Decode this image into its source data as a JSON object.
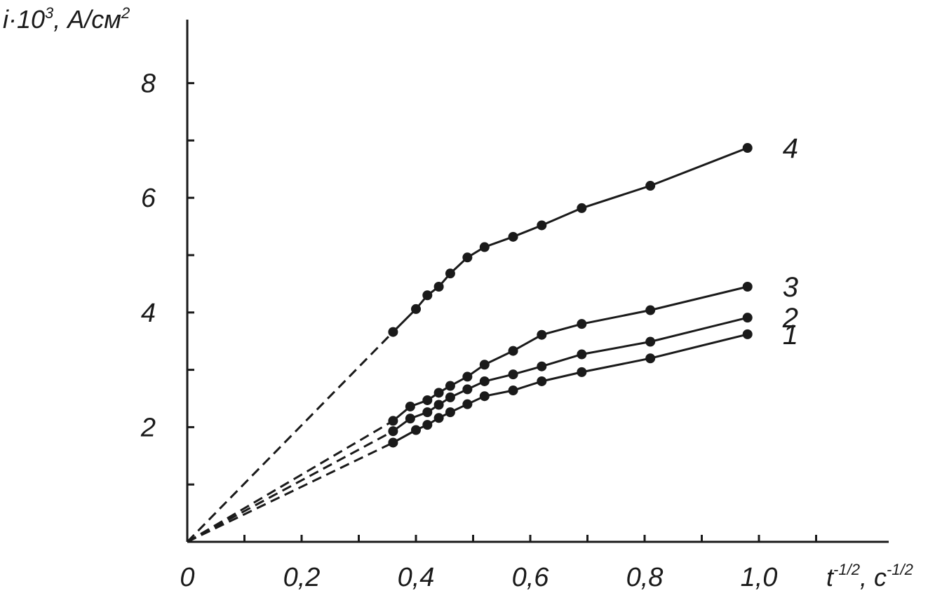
{
  "chart_data": {
    "type": "line",
    "xlabel": "t",
    "xlabel_sup": "-1/2",
    "xlabel_unit": ", с",
    "xlabel_unit_sup": "-1/2",
    "ylabel_prefix": "i·10",
    "ylabel_sup": "3",
    "ylabel_unit": ", А/см",
    "ylabel_unit_sup": "2",
    "xlim": [
      0,
      1.1
    ],
    "ylim": [
      0,
      9.2
    ],
    "x_ticks": [
      {
        "value": 0,
        "label": "0"
      },
      {
        "value": 0.2,
        "label": "0,2"
      },
      {
        "value": 0.4,
        "label": "0,4"
      },
      {
        "value": 0.6,
        "label": "0,6"
      },
      {
        "value": 0.8,
        "label": "0,8"
      },
      {
        "value": 1.0,
        "label": "1,0"
      }
    ],
    "x_minor_ticks": [
      0.1,
      0.3,
      0.5,
      0.7,
      0.9,
      1.1
    ],
    "y_ticks": [
      {
        "value": 2,
        "label": "2"
      },
      {
        "value": 4,
        "label": "4"
      },
      {
        "value": 6,
        "label": "6"
      },
      {
        "value": 8,
        "label": "8"
      }
    ],
    "y_minor_ticks": [
      1,
      3,
      5,
      7
    ],
    "grid": false,
    "series": [
      {
        "name": "1",
        "x": [
          0.36,
          0.4,
          0.42,
          0.44,
          0.46,
          0.49,
          0.52,
          0.57,
          0.62,
          0.69,
          0.81,
          0.98
        ],
        "y": [
          1.73,
          1.95,
          2.04,
          2.16,
          2.26,
          2.4,
          2.54,
          2.64,
          2.8,
          2.96,
          3.2,
          3.62
        ],
        "extrapolation_to_origin": true
      },
      {
        "name": "2",
        "x": [
          0.36,
          0.39,
          0.42,
          0.44,
          0.46,
          0.49,
          0.52,
          0.57,
          0.62,
          0.69,
          0.81,
          0.98
        ],
        "y": [
          1.93,
          2.15,
          2.26,
          2.39,
          2.52,
          2.66,
          2.8,
          2.92,
          3.06,
          3.27,
          3.49,
          3.91
        ],
        "extrapolation_to_origin": true
      },
      {
        "name": "3",
        "x": [
          0.36,
          0.39,
          0.42,
          0.44,
          0.46,
          0.49,
          0.52,
          0.57,
          0.62,
          0.69,
          0.81,
          0.98
        ],
        "y": [
          2.11,
          2.36,
          2.47,
          2.6,
          2.72,
          2.88,
          3.09,
          3.33,
          3.61,
          3.8,
          4.04,
          4.45
        ],
        "extrapolation_to_origin": true
      },
      {
        "name": "4",
        "x": [
          0.36,
          0.4,
          0.42,
          0.44,
          0.46,
          0.49,
          0.52,
          0.57,
          0.62,
          0.69,
          0.81,
          0.98
        ],
        "y": [
          3.66,
          4.06,
          4.3,
          4.45,
          4.68,
          4.96,
          5.14,
          5.32,
          5.52,
          5.82,
          6.21,
          6.87
        ],
        "extrapolation_to_origin": true
      }
    ]
  }
}
